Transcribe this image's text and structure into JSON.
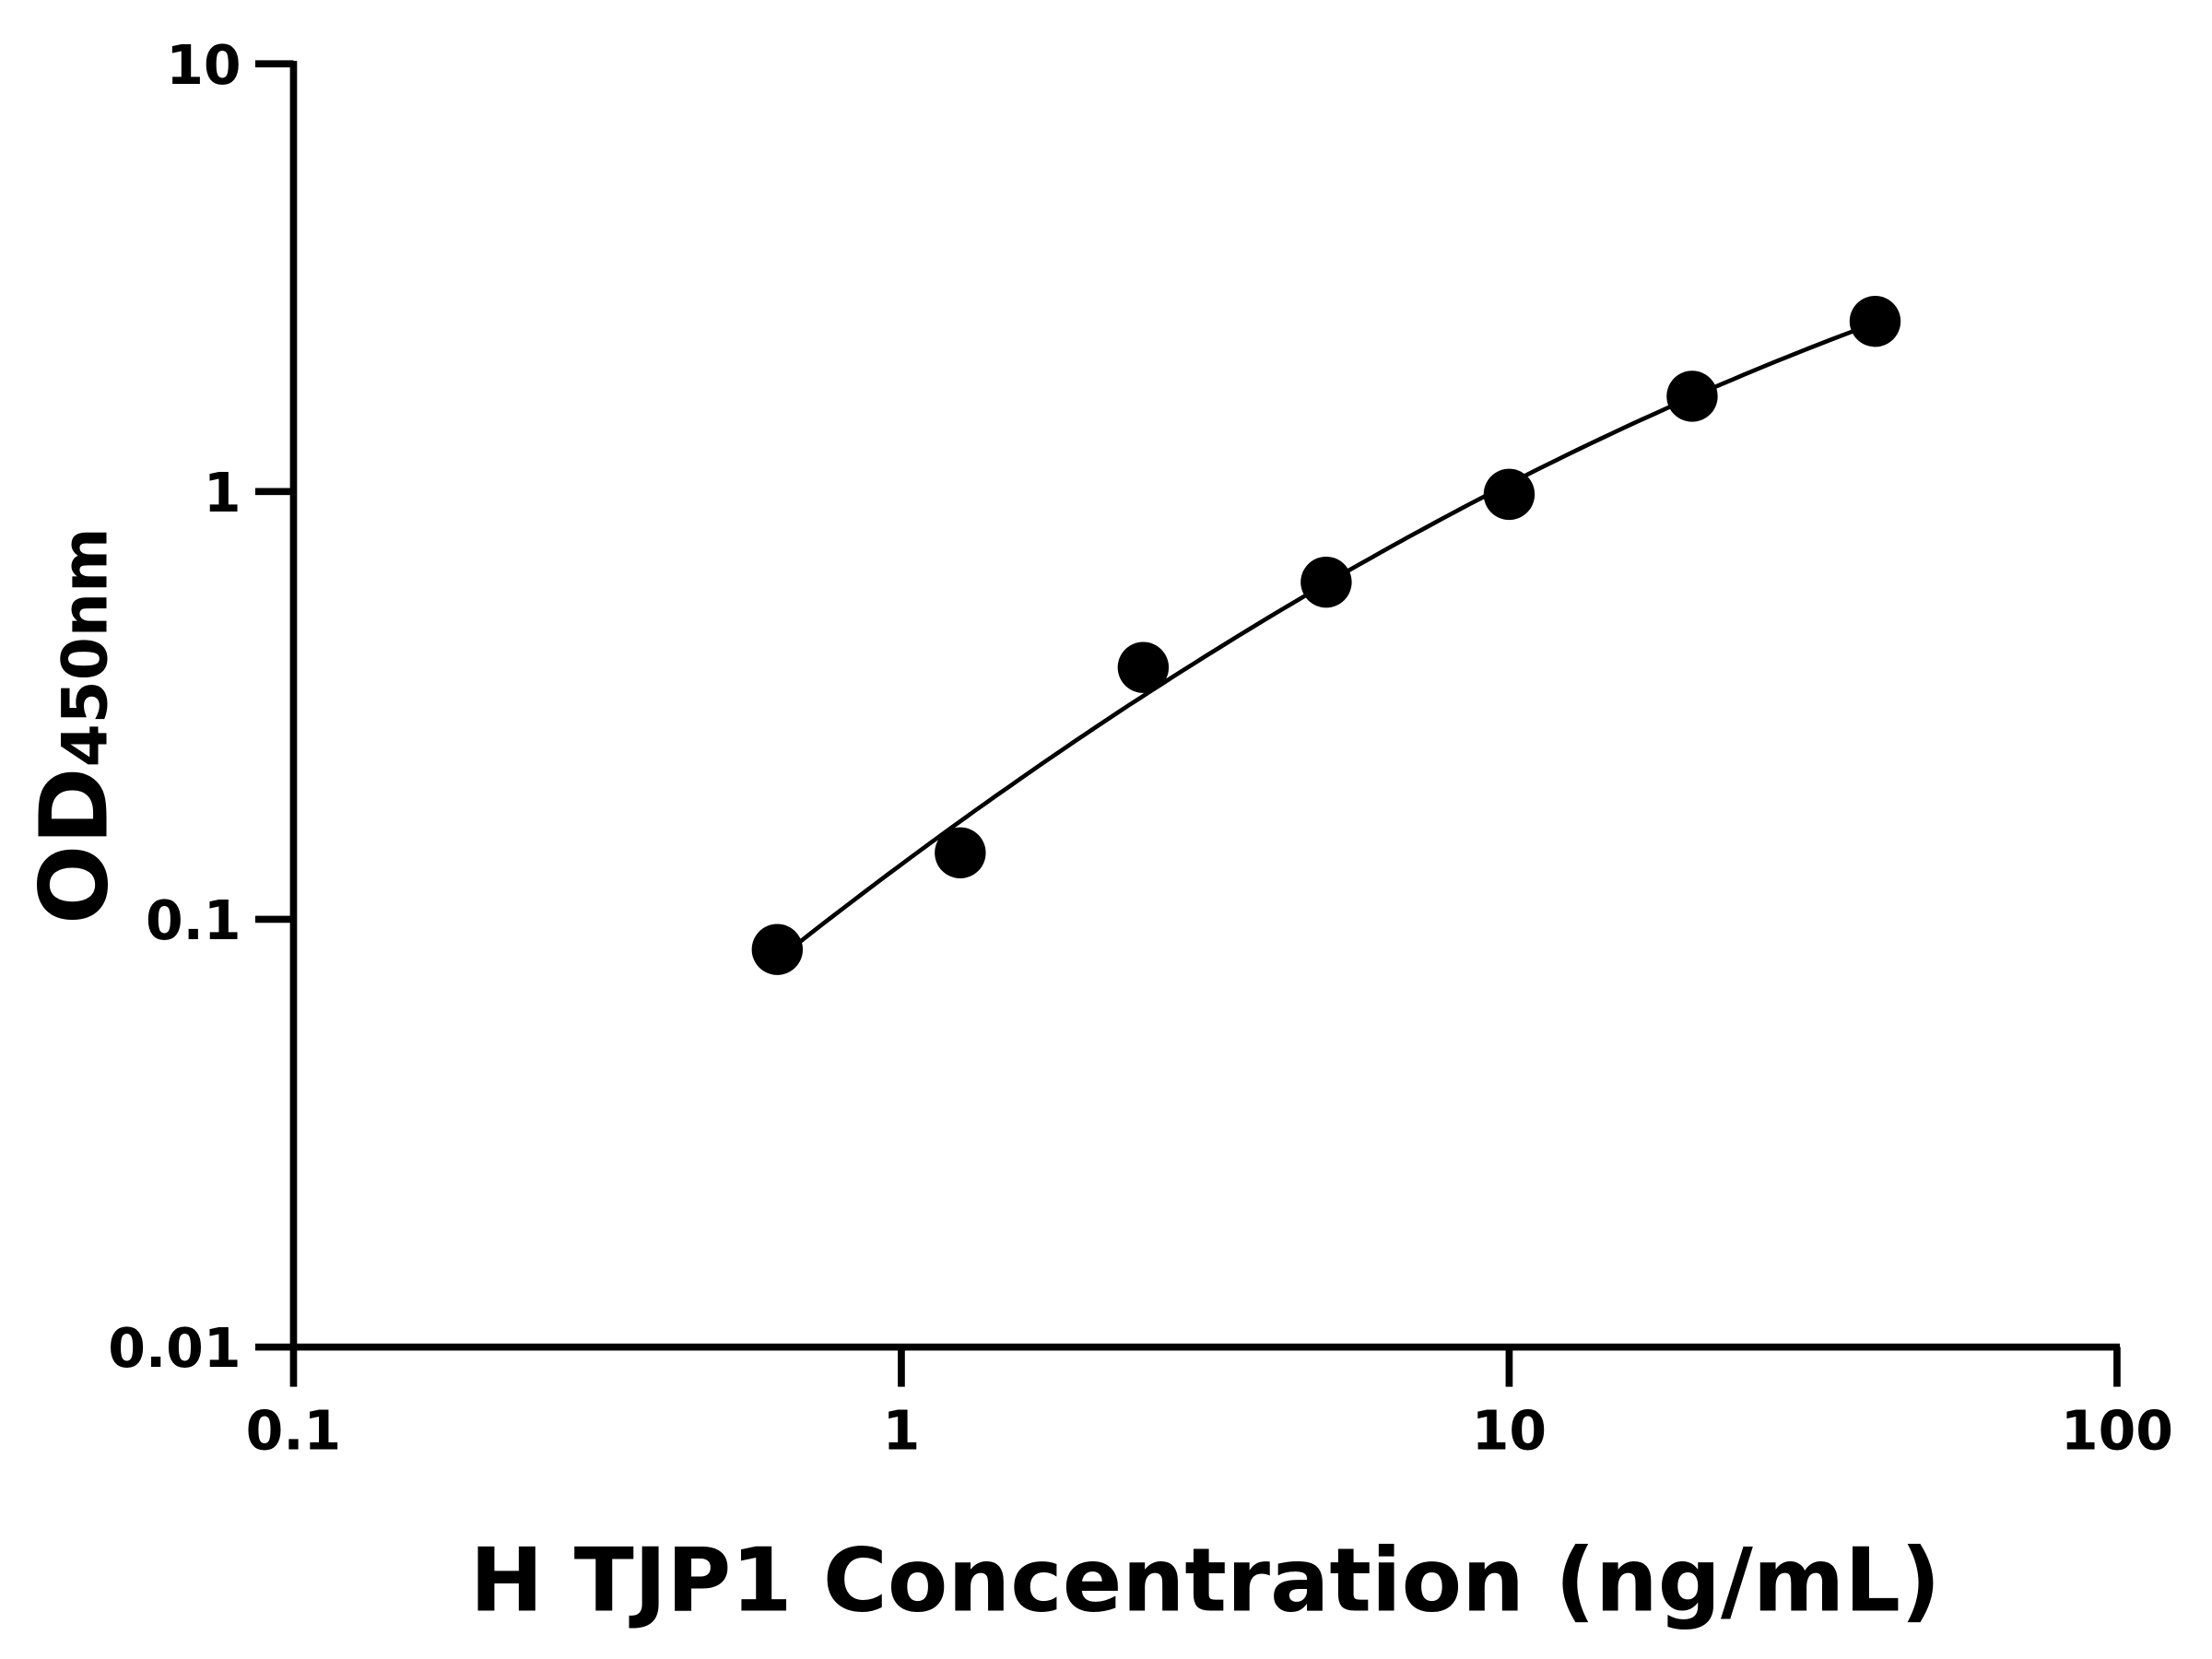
{
  "chart_data": {
    "type": "scatter",
    "title": "",
    "xlabel": "H TJP1 Concentration (ng/mL)",
    "ylabel_main": "OD",
    "ylabel_sub": "450nm",
    "x_scale": "log",
    "y_scale": "log",
    "xlim": [
      0.1,
      100
    ],
    "ylim": [
      0.01,
      10
    ],
    "x_ticks": [
      0.1,
      1,
      10,
      100
    ],
    "x_tick_labels": [
      "0.1",
      "1",
      "10",
      "100"
    ],
    "y_ticks": [
      0.01,
      0.1,
      1,
      10
    ],
    "y_tick_labels": [
      "0.01",
      "0.1",
      "1",
      "10"
    ],
    "grid": false,
    "fit_curve": true,
    "marker_color": "#000000",
    "line_color": "#000000",
    "points": [
      {
        "x": 0.625,
        "y": 0.085
      },
      {
        "x": 1.25,
        "y": 0.143
      },
      {
        "x": 2.5,
        "y": 0.388
      },
      {
        "x": 5,
        "y": 0.614
      },
      {
        "x": 10,
        "y": 0.985
      },
      {
        "x": 20,
        "y": 1.67
      },
      {
        "x": 40,
        "y": 2.5
      }
    ]
  }
}
